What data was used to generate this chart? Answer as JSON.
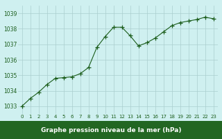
{
  "x": [
    0,
    1,
    2,
    3,
    4,
    5,
    6,
    7,
    8,
    9,
    10,
    11,
    12,
    13,
    14,
    15,
    16,
    17,
    18,
    19,
    20,
    21,
    22,
    23
  ],
  "y": [
    1033.0,
    1033.5,
    1033.9,
    1034.4,
    1034.8,
    1034.85,
    1034.9,
    1035.1,
    1035.5,
    1036.8,
    1037.5,
    1038.1,
    1038.1,
    1037.55,
    1036.9,
    1037.1,
    1037.4,
    1037.8,
    1038.2,
    1038.4,
    1038.5,
    1038.6,
    1038.75,
    1038.65
  ],
  "line_color": "#1a5c1a",
  "marker": "+",
  "marker_color": "#1a5c1a",
  "bg_color": "#cff0f0",
  "grid_color": "#aacece",
  "xlabel": "Graphe pression niveau de la mer (hPa)",
  "xlabel_color": "white",
  "xlabel_bg": "#226622",
  "tick_color": "#1a5c1a",
  "ylim": [
    1032.5,
    1039.5
  ],
  "xlim": [
    -0.5,
    23.5
  ],
  "yticks": [
    1033,
    1034,
    1035,
    1036,
    1037,
    1038,
    1039
  ],
  "xticks": [
    0,
    1,
    2,
    3,
    4,
    5,
    6,
    7,
    8,
    9,
    10,
    11,
    12,
    13,
    14,
    15,
    16,
    17,
    18,
    19,
    20,
    21,
    22,
    23
  ]
}
